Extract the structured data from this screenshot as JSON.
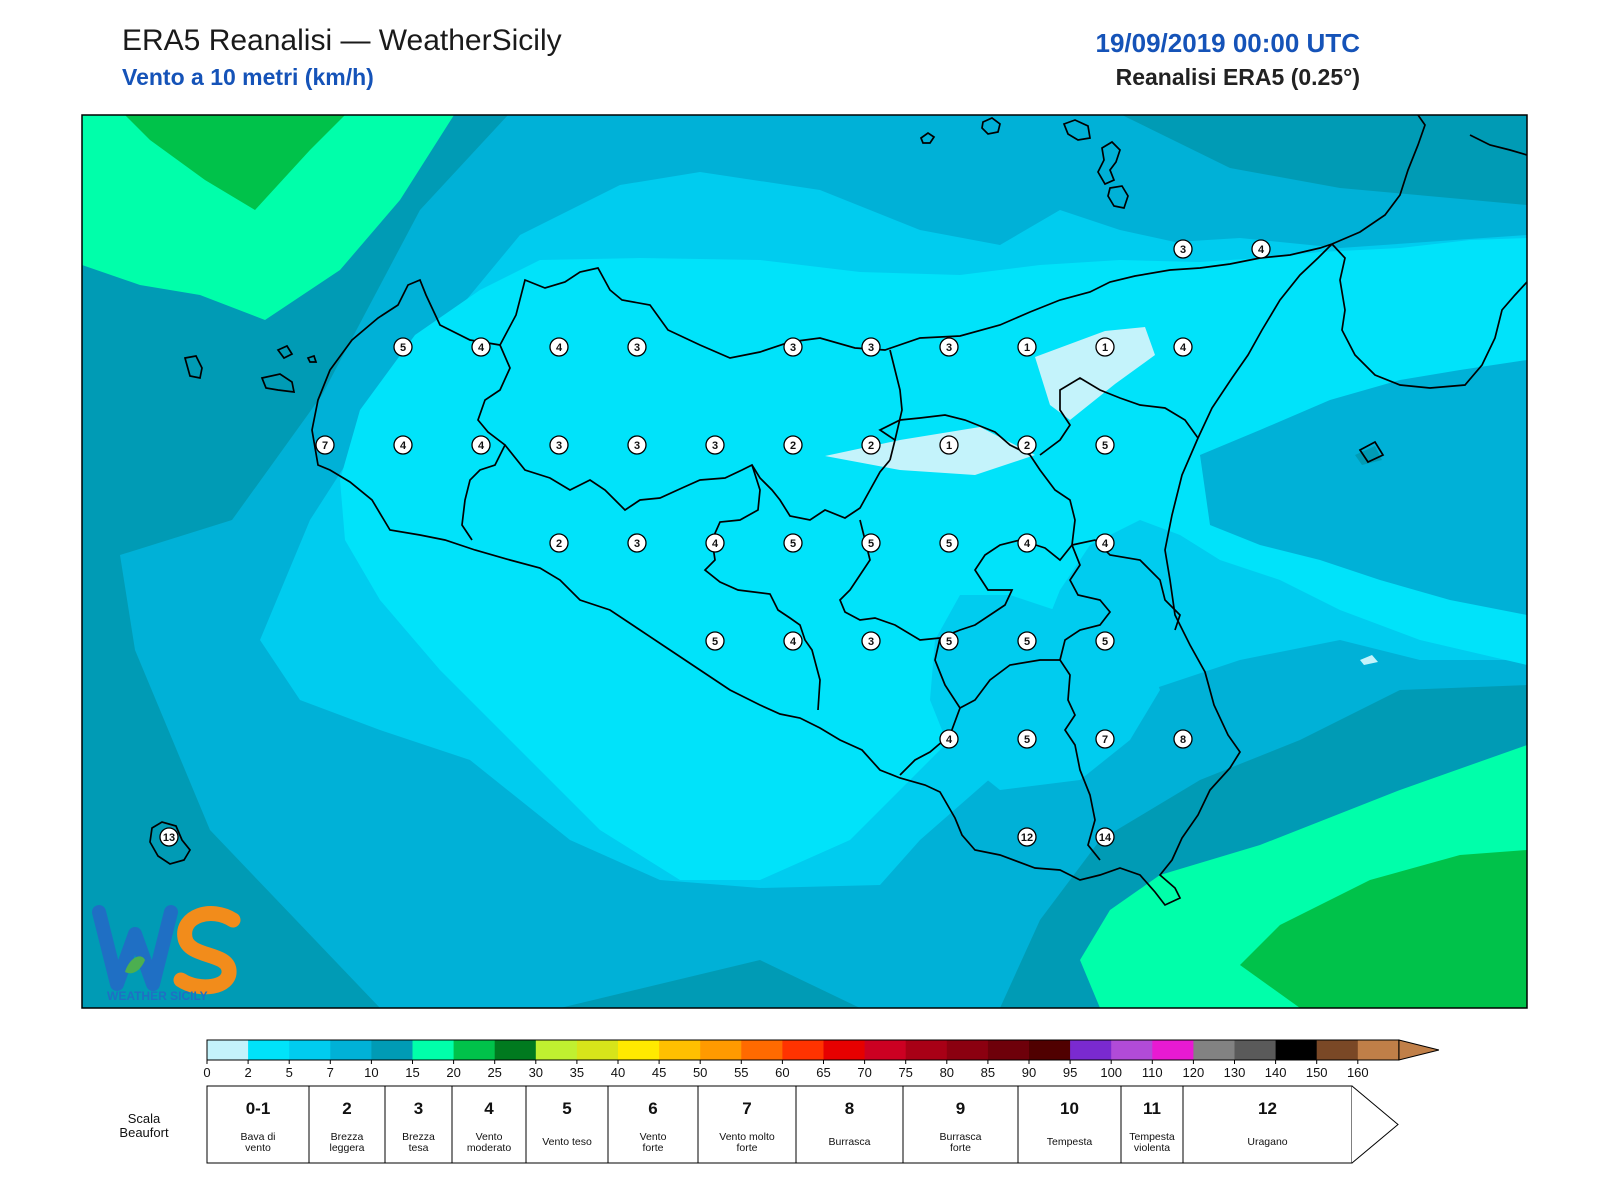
{
  "header": {
    "title": "ERA5 Reanalisi — WeatherSicily",
    "subtitle": "Vento a 10 metri (km/h)",
    "datetime": "19/09/2019 00:00 UTC",
    "source": "Reanalisi ERA5 (0.25°)"
  },
  "logo": {
    "text": "WEATHER SICILY",
    "letters": "WS"
  },
  "map": {
    "colors": {
      "c0_2": "#c4f3fb",
      "c2_5": "#00e3fa",
      "c5_7": "#00ccef",
      "c7_10": "#00b1d7",
      "c10_15": "#009bb5",
      "c15_20": "#00ffaa",
      "c20_25": "#00c24a",
      "coast": "#000000"
    },
    "points": [
      {
        "v": "5",
        "lon": 12.5,
        "lat": 38.0
      },
      {
        "v": "4",
        "lon": 12.75,
        "lat": 38.0
      },
      {
        "v": "4",
        "lon": 13.0,
        "lat": 38.0
      },
      {
        "v": "3",
        "lon": 13.25,
        "lat": 38.0
      },
      {
        "v": "3",
        "lon": 13.75,
        "lat": 38.0
      },
      {
        "v": "3",
        "lon": 14.0,
        "lat": 38.0
      },
      {
        "v": "3",
        "lon": 14.25,
        "lat": 38.0
      },
      {
        "v": "1",
        "lon": 14.5,
        "lat": 38.0
      },
      {
        "v": "1",
        "lon": 14.75,
        "lat": 38.0
      },
      {
        "v": "4",
        "lon": 15.0,
        "lat": 38.0
      },
      {
        "v": "7",
        "lon": 12.25,
        "lat": 37.75
      },
      {
        "v": "4",
        "lon": 12.5,
        "lat": 37.75
      },
      {
        "v": "4",
        "lon": 12.75,
        "lat": 37.75
      },
      {
        "v": "3",
        "lon": 13.0,
        "lat": 37.75
      },
      {
        "v": "3",
        "lon": 13.25,
        "lat": 37.75
      },
      {
        "v": "3",
        "lon": 13.5,
        "lat": 37.75
      },
      {
        "v": "2",
        "lon": 13.75,
        "lat": 37.75
      },
      {
        "v": "2",
        "lon": 14.0,
        "lat": 37.75
      },
      {
        "v": "1",
        "lon": 14.25,
        "lat": 37.75
      },
      {
        "v": "2",
        "lon": 14.5,
        "lat": 37.75
      },
      {
        "v": "5",
        "lon": 14.75,
        "lat": 37.75
      },
      {
        "v": "2",
        "lon": 13.0,
        "lat": 37.5
      },
      {
        "v": "3",
        "lon": 13.25,
        "lat": 37.5
      },
      {
        "v": "4",
        "lon": 13.5,
        "lat": 37.5
      },
      {
        "v": "5",
        "lon": 13.75,
        "lat": 37.5
      },
      {
        "v": "5",
        "lon": 14.0,
        "lat": 37.5
      },
      {
        "v": "5",
        "lon": 14.25,
        "lat": 37.5
      },
      {
        "v": "4",
        "lon": 14.5,
        "lat": 37.5
      },
      {
        "v": "4",
        "lon": 14.75,
        "lat": 37.5
      },
      {
        "v": "5",
        "lon": 13.5,
        "lat": 37.25
      },
      {
        "v": "4",
        "lon": 13.75,
        "lat": 37.25
      },
      {
        "v": "3",
        "lon": 14.0,
        "lat": 37.25
      },
      {
        "v": "5",
        "lon": 14.25,
        "lat": 37.25
      },
      {
        "v": "5",
        "lon": 14.5,
        "lat": 37.25
      },
      {
        "v": "5",
        "lon": 14.75,
        "lat": 37.25
      },
      {
        "v": "4",
        "lon": 14.25,
        "lat": 37.0
      },
      {
        "v": "5",
        "lon": 14.5,
        "lat": 37.0
      },
      {
        "v": "7",
        "lon": 14.75,
        "lat": 37.0
      },
      {
        "v": "8",
        "lon": 15.0,
        "lat": 37.0
      },
      {
        "v": "12",
        "lon": 14.5,
        "lat": 36.75
      },
      {
        "v": "14",
        "lon": 14.75,
        "lat": 36.75
      },
      {
        "v": "3",
        "lon": 15.0,
        "lat": 38.25
      },
      {
        "v": "4",
        "lon": 15.25,
        "lat": 38.25
      },
      {
        "v": "13",
        "lon": 11.75,
        "lat": 36.75
      }
    ]
  },
  "colorbar": {
    "colors": [
      "#c4f3fb",
      "#00e3fa",
      "#00ccef",
      "#00b1d7",
      "#009bb5",
      "#00ffaa",
      "#00c24a",
      "#007a1f",
      "#c0f030",
      "#d7e41a",
      "#ffea00",
      "#ffc000",
      "#ff9a00",
      "#ff6a00",
      "#ff3300",
      "#e60000",
      "#cc0022",
      "#a80016",
      "#8b0010",
      "#6e000a",
      "#500000",
      "#7a2ad0",
      "#b14bd8",
      "#e81ad2",
      "#828282",
      "#5a5a5a",
      "#000000",
      "#7a4826",
      "#c07f48"
    ],
    "ticks": [
      "0",
      "2",
      "5",
      "7",
      "10",
      "15",
      "20",
      "25",
      "30",
      "35",
      "40",
      "45",
      "50",
      "55",
      "60",
      "65",
      "70",
      "75",
      "80",
      "85",
      "90",
      "95",
      "100",
      "110",
      "120",
      "130",
      "140",
      "150",
      "160"
    ]
  },
  "beaufort": {
    "label": "Scala\nBeaufort",
    "cells": [
      {
        "num": "0-1",
        "desc": "Bava di\nvento"
      },
      {
        "num": "2",
        "desc": "Brezza\nleggera"
      },
      {
        "num": "3",
        "desc": "Brezza\ntesa"
      },
      {
        "num": "4",
        "desc": "Vento\nmoderato"
      },
      {
        "num": "5",
        "desc": "Vento teso"
      },
      {
        "num": "6",
        "desc": "Vento\nforte"
      },
      {
        "num": "7",
        "desc": "Vento molto\nforte"
      },
      {
        "num": "8",
        "desc": "Burrasca"
      },
      {
        "num": "9",
        "desc": "Burrasca\nforte"
      },
      {
        "num": "10",
        "desc": "Tempesta"
      },
      {
        "num": "11",
        "desc": "Tempesta\nviolenta"
      },
      {
        "num": "12",
        "desc": "Uragano"
      }
    ]
  }
}
